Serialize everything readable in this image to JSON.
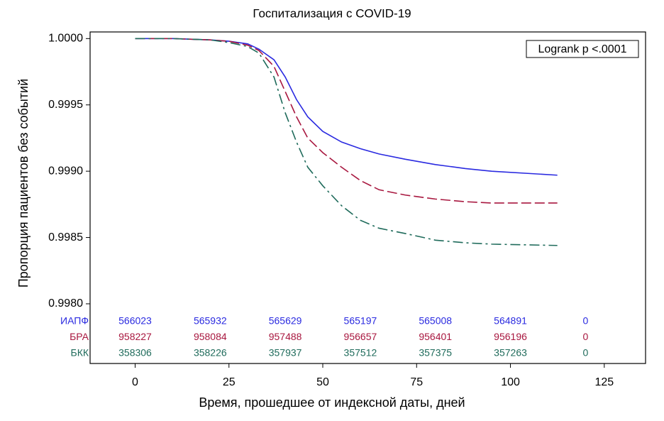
{
  "chart_data": {
    "type": "km",
    "title": "Госпитализация с COVID-19",
    "xlabel": "Время, прошедшее от индексной даты, дней",
    "ylabel": "Пропорция пациентов без событий",
    "annotation": "Logrank p <.0001",
    "x": [
      0,
      10,
      20,
      25,
      30,
      33,
      37,
      40,
      43,
      46,
      50,
      55,
      60,
      65,
      72,
      80,
      88,
      95,
      112.5
    ],
    "series": [
      {
        "name": "ИАПФ",
        "color": "#2a2ae0",
        "dash": "solid",
        "values": [
          1.0,
          1.0,
          0.99999,
          0.99998,
          0.99996,
          0.99992,
          0.99984,
          0.99971,
          0.99954,
          0.99941,
          0.9993,
          0.99922,
          0.99917,
          0.99913,
          0.99909,
          0.99905,
          0.99902,
          0.999,
          0.99897
        ],
        "at_risk": [
          566023,
          565932,
          565629,
          565197,
          565008,
          564891,
          0
        ]
      },
      {
        "name": "БРА",
        "color": "#a8173f",
        "dash": "dashed",
        "values": [
          1.0,
          1.0,
          0.99999,
          0.99998,
          0.99995,
          0.99991,
          0.99979,
          0.9996,
          0.99941,
          0.99925,
          0.99914,
          0.99903,
          0.99893,
          0.99886,
          0.99882,
          0.99879,
          0.99877,
          0.99876,
          0.99876
        ],
        "at_risk": [
          958227,
          958084,
          957488,
          956657,
          956401,
          956196,
          0
        ]
      },
      {
        "name": "БКК",
        "color": "#1f6b5b",
        "dash": "dashdot",
        "values": [
          1.0,
          1.0,
          0.99999,
          0.99997,
          0.99994,
          0.99989,
          0.99971,
          0.99944,
          0.99922,
          0.99903,
          0.99889,
          0.99874,
          0.99863,
          0.99857,
          0.99853,
          0.99848,
          0.99846,
          0.99845,
          0.99844
        ],
        "at_risk": [
          358306,
          358226,
          357937,
          357512,
          357375,
          357263,
          0
        ]
      }
    ],
    "at_risk_times": [
      0,
      20,
      40,
      60,
      80,
      100,
      120
    ],
    "xlim": [
      -12,
      136
    ],
    "xticks": [
      0,
      25,
      50,
      75,
      100,
      125
    ],
    "ylim": [
      0.99755,
      1.00005
    ],
    "yticks": [
      {
        "value": 0.998,
        "label": "0.9980"
      },
      0.9985,
      {
        "value": 0.999,
        "label": "0.9990"
      },
      0.9995,
      {
        "value": 1.0,
        "label": "1.0000"
      }
    ]
  }
}
